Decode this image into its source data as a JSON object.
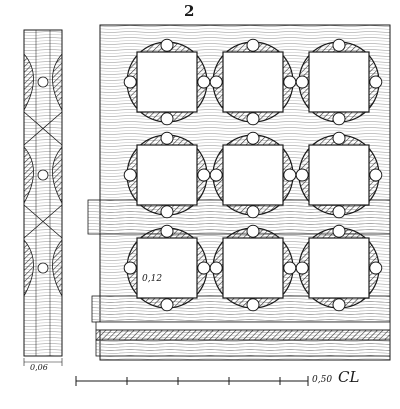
{
  "drawing": {
    "plate_number": "2",
    "dimension_side_elevation": "0,06",
    "dimension_grid_spacing": "0,12",
    "scale_length": "0,50",
    "signature": "CL",
    "ink_color": "#1a1a1a",
    "paper_color": "#ffffff",
    "grid": {
      "rows": 3,
      "cols": 3
    }
  }
}
